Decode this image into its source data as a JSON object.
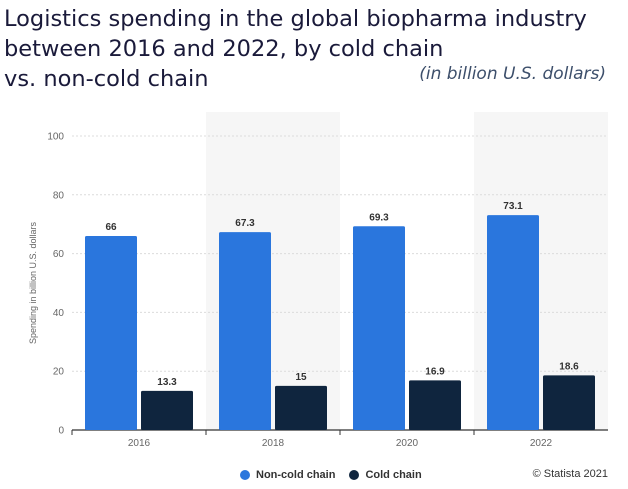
{
  "header": {
    "title_lines": [
      "Logistics spending in the global biopharma industry",
      "between 2016 and 2022, by cold chain",
      "vs. non-cold chain"
    ],
    "subtitle": "(in billion U.S. dollars)"
  },
  "footer": {
    "credit": "© Statista 2021"
  },
  "chart_data": {
    "type": "bar",
    "title": "Logistics spending in the global biopharma industry between 2016 and 2022, by cold chain vs. non-cold chain",
    "subtitle": "(in billion U.S. dollars)",
    "categories": [
      "2016",
      "2018",
      "2020",
      "2022"
    ],
    "series": [
      {
        "name": "Non-cold chain",
        "color": "#2a76dd",
        "values": [
          66,
          67.3,
          69.3,
          73.1
        ],
        "labels": [
          "66",
          "67.3",
          "69.3",
          "73.1"
        ]
      },
      {
        "name": "Cold chain",
        "color": "#0f253e",
        "values": [
          13.3,
          15,
          16.9,
          18.6
        ],
        "labels": [
          "13.3",
          "15",
          "16.9",
          "18.6"
        ]
      }
    ],
    "xlabel": "",
    "ylabel": "Spending in billion U.S. dollars",
    "ylim": [
      0,
      100
    ],
    "yticks": [
      "0",
      "20",
      "40",
      "60",
      "80",
      "100"
    ],
    "grid": true,
    "legend": "bottom-center"
  }
}
